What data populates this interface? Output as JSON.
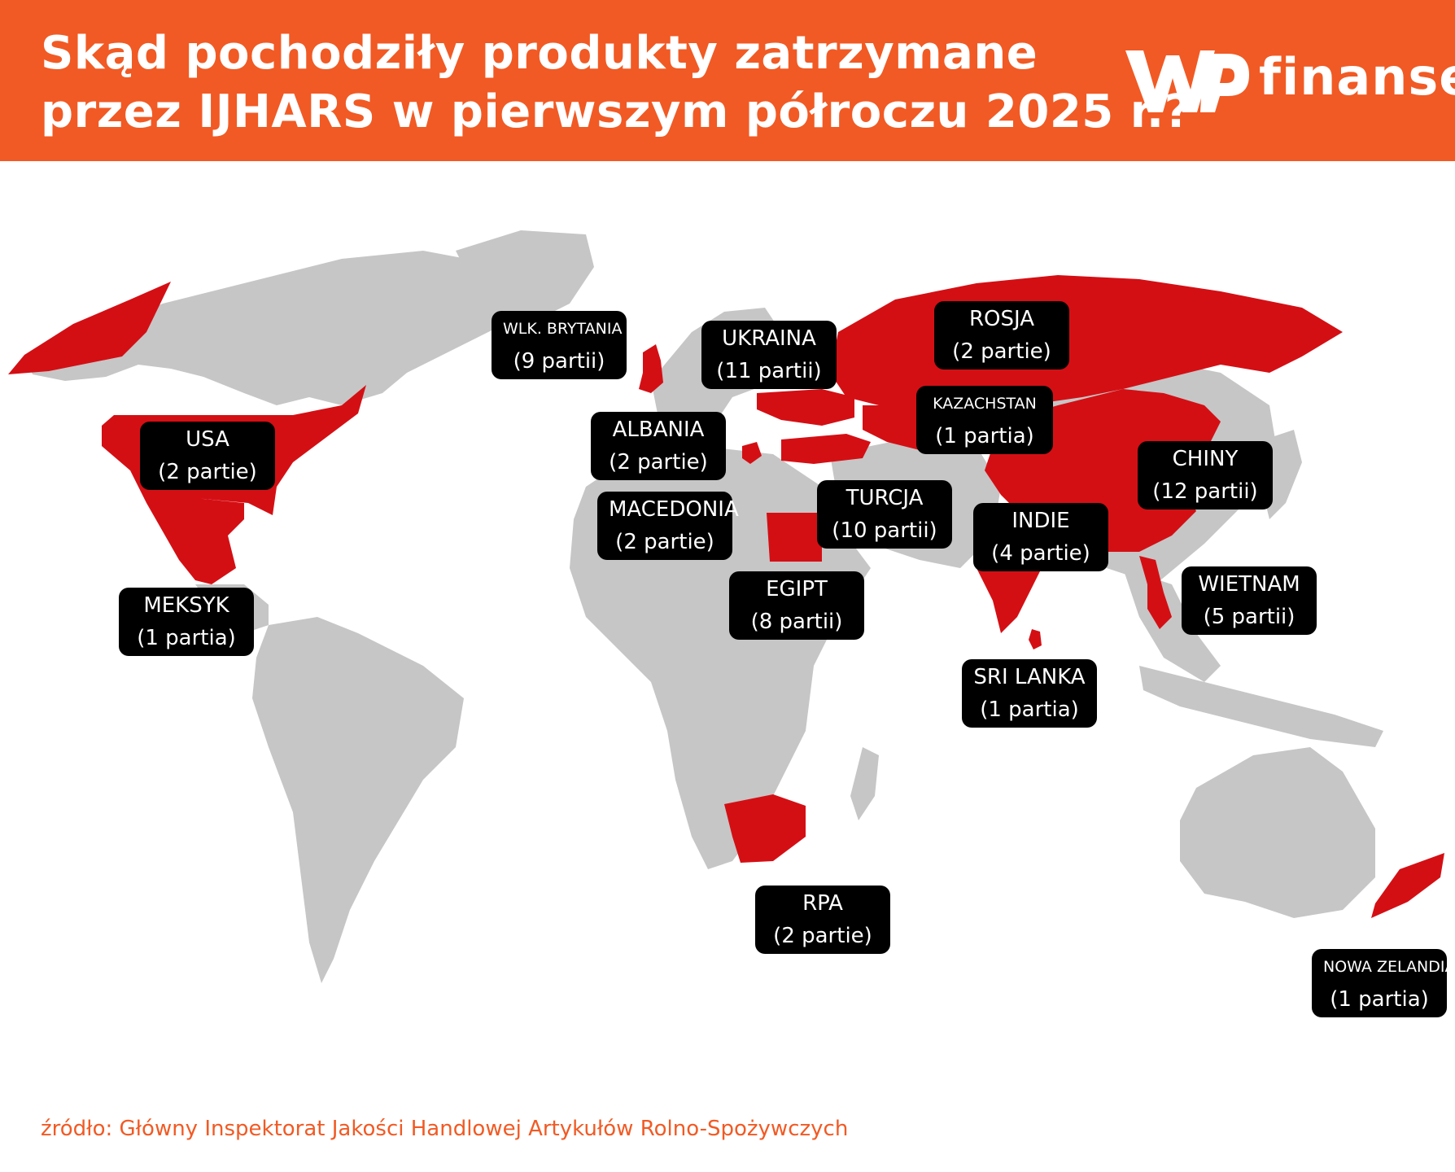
{
  "header": {
    "title_line1": "Skąd pochodziły produkty zatrzymane",
    "title_line2": "przez IJHARS w pierwszym półroczu 2025 r.?",
    "logo_text": "finanse",
    "logo_icon": "wp-logo-icon"
  },
  "colors": {
    "accent": "#f15a24",
    "highlight": "#d40f14",
    "land": "#c6c6c6",
    "label_bg": "#000000"
  },
  "countries": [
    {
      "id": "uk",
      "name": "WLK. BRYTANIA",
      "count": "(9 partii)",
      "batches": 9
    },
    {
      "id": "ukraine",
      "name": "UKRAINA",
      "count": "(11 partii)",
      "batches": 11
    },
    {
      "id": "russia",
      "name": "ROSJA",
      "count": "(2 partie)",
      "batches": 2
    },
    {
      "id": "kazakhstan",
      "name": "KAZACHSTAN",
      "count": "(1 partia)",
      "batches": 1
    },
    {
      "id": "usa",
      "name": "USA",
      "count": "(2 partie)",
      "batches": 2
    },
    {
      "id": "albania",
      "name": "ALBANIA",
      "count": "(2 partie)",
      "batches": 2
    },
    {
      "id": "macedonia",
      "name": "MACEDONIA",
      "count": "(2 partie)",
      "batches": 2
    },
    {
      "id": "turkey",
      "name": "TURCJA",
      "count": "(10 partii)",
      "batches": 10
    },
    {
      "id": "india",
      "name": "INDIE",
      "count": "(4 partie)",
      "batches": 4
    },
    {
      "id": "china",
      "name": "CHINY",
      "count": "(12 partii)",
      "batches": 12
    },
    {
      "id": "mexico",
      "name": "MEKSYK",
      "count": "(1 partia)",
      "batches": 1
    },
    {
      "id": "egypt",
      "name": "EGIPT",
      "count": "(8 partii)",
      "batches": 8
    },
    {
      "id": "vietnam",
      "name": "WIETNAM",
      "count": "(5 partii)",
      "batches": 5
    },
    {
      "id": "srilanka",
      "name": "SRI LANKA",
      "count": "(1 partia)",
      "batches": 1
    },
    {
      "id": "rpa",
      "name": "RPA",
      "count": "(2 partie)",
      "batches": 2
    },
    {
      "id": "nz",
      "name": "NOWA ZELANDIA",
      "count": "(1 partia)",
      "batches": 1
    }
  ],
  "footer": {
    "source": "źródło: Główny Inspektorat Jakości Handlowej Artykułów Rolno-Spożywczych"
  }
}
